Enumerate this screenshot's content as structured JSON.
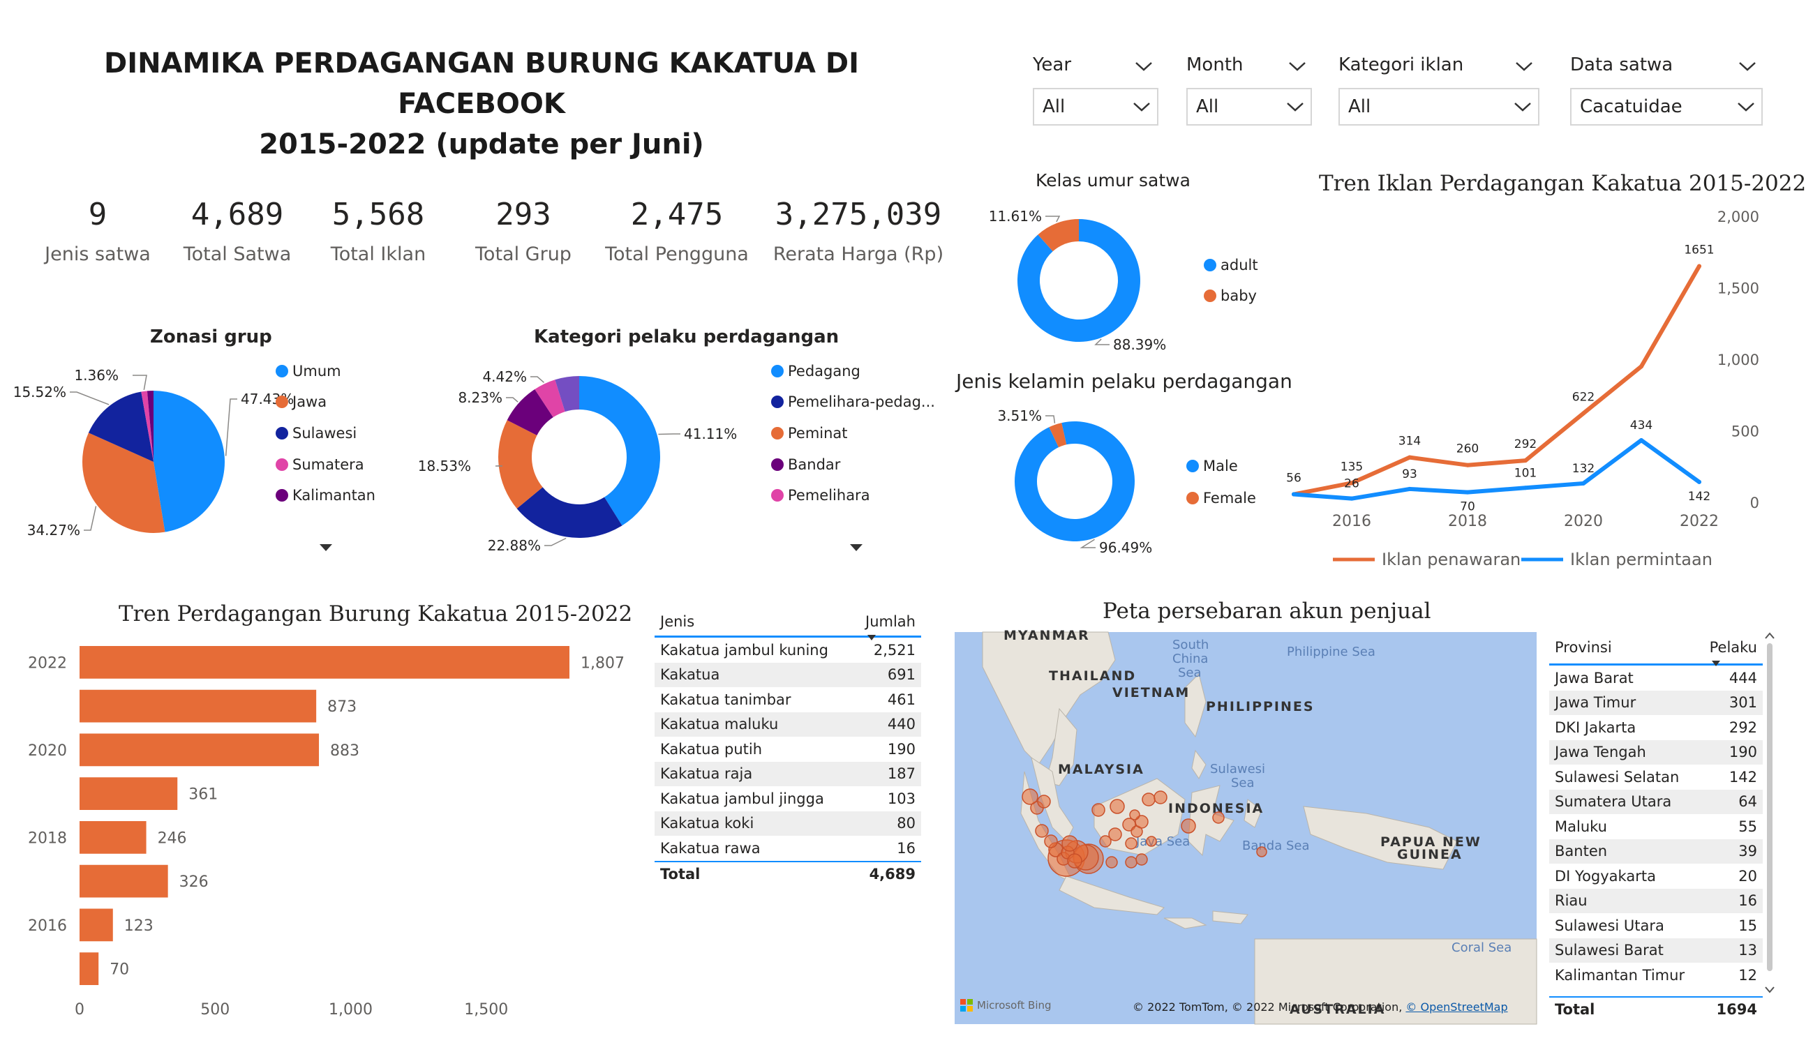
{
  "title": {
    "line1": "DINAMIKA PERDAGANGAN BURUNG KAKATUA DI FACEBOOK",
    "line2": "2015-2022 (update per Juni)"
  },
  "filters": [
    {
      "label": "Year",
      "value": "All"
    },
    {
      "label": "Month",
      "value": "All"
    },
    {
      "label": "Kategori iklan",
      "value": "All"
    },
    {
      "label": "Data satwa",
      "value": "Cacatuidae"
    }
  ],
  "kpis": [
    {
      "value": "9",
      "label": "Jenis satwa"
    },
    {
      "value": "4,689",
      "label": "Total Satwa"
    },
    {
      "value": "5,568",
      "label": "Total Iklan"
    },
    {
      "value": "293",
      "label": "Total Grup"
    },
    {
      "value": "2,475",
      "label": "Total Pengguna"
    },
    {
      "value": "3,275,039",
      "label": "Rerata Harga (Rp)"
    }
  ],
  "chart_data": [
    {
      "id": "zonasi",
      "type": "pie",
      "title": "Zonasi grup",
      "slices": [
        {
          "name": "Umum",
          "value": 47.43,
          "label": "47.43%",
          "color": "#118dff"
        },
        {
          "name": "Jawa",
          "value": 34.27,
          "label": "34.27%",
          "color": "#e66c37"
        },
        {
          "name": "Sulawesi",
          "value": 15.52,
          "label": "15.52%",
          "color": "#12239e"
        },
        {
          "name": "Sumatera",
          "value": 1.36,
          "label": "1.36%",
          "color": "#e044a7"
        },
        {
          "name": "Kalimantan",
          "value": 1.42,
          "label": "",
          "color": "#6b007b"
        }
      ]
    },
    {
      "id": "pelaku",
      "type": "pie",
      "title": "Kategori pelaku perdagangan",
      "slices": [
        {
          "name": "Pedagang",
          "value": 41.11,
          "label": "41.11%",
          "color": "#118dff"
        },
        {
          "name": "Pemelihara-pedag...",
          "value": 22.88,
          "label": "22.88%",
          "color": "#12239e"
        },
        {
          "name": "Peminat",
          "value": 18.53,
          "label": "18.53%",
          "color": "#e66c37"
        },
        {
          "name": "Bandar",
          "value": 8.23,
          "label": "8.23%",
          "color": "#6b007b"
        },
        {
          "name": "Pemelihara",
          "value": 4.42,
          "label": "4.42%",
          "color": "#e044a7"
        },
        {
          "name": "",
          "value": 4.83,
          "label": "",
          "color": "#744ec2"
        }
      ]
    },
    {
      "id": "umur",
      "type": "pie",
      "title": "Kelas umur satwa",
      "slices": [
        {
          "name": "adult",
          "value": 88.39,
          "label": "88.39%",
          "color": "#118dff"
        },
        {
          "name": "baby",
          "value": 11.61,
          "label": "11.61%",
          "color": "#e66c37"
        }
      ]
    },
    {
      "id": "kelamin",
      "type": "pie",
      "title": "Jenis kelamin pelaku perdagangan",
      "slices": [
        {
          "name": "Male",
          "value": 96.49,
          "label": "96.49%",
          "color": "#118dff"
        },
        {
          "name": "Female",
          "value": 3.51,
          "label": "3.51%",
          "color": "#e66c37"
        }
      ]
    },
    {
      "id": "tren_iklan",
      "type": "line",
      "title": "Tren Iklan Perdagangan Kakatua 2015-2022",
      "x": [
        2015,
        2016,
        2017,
        2018,
        2019,
        2020,
        2021,
        2022
      ],
      "x_ticks": [
        "2016",
        "2018",
        "2020",
        "2022"
      ],
      "y_ticks": [
        "0",
        "500",
        "1,000",
        "1,500",
        "2,000"
      ],
      "ylim": [
        0,
        2000
      ],
      "series": [
        {
          "name": "Iklan penawaran",
          "color": "#e66c37",
          "values": [
            56,
            135,
            314,
            260,
            292,
            622,
            950,
            1651
          ],
          "labels": [
            "56",
            "135",
            "314",
            "260",
            "292",
            "622",
            "",
            "1651"
          ]
        },
        {
          "name": "Iklan permintaan",
          "color": "#118dff",
          "values": [
            56,
            26,
            93,
            70,
            101,
            132,
            434,
            142
          ],
          "labels": [
            "",
            "26",
            "93",
            "70",
            "101",
            "132",
            "434",
            "142"
          ]
        }
      ]
    },
    {
      "id": "tren_perdagangan",
      "type": "bar",
      "orientation": "horizontal",
      "title": "Tren Perdagangan Burung Kakatua 2015-2022",
      "categories": [
        "2022",
        "2021",
        "2020",
        "2019",
        "2018",
        "2017",
        "2016",
        "2015"
      ],
      "category_labels": [
        "2022",
        "",
        "2020",
        "",
        "2018",
        "",
        "2016",
        ""
      ],
      "values": [
        1807,
        873,
        883,
        361,
        246,
        326,
        123,
        70
      ],
      "x_ticks": [
        "0",
        "500",
        "1,000",
        "1,500"
      ],
      "xlim": [
        0,
        1807
      ],
      "color": "#e66c37"
    }
  ],
  "jenis_table": {
    "headers": [
      "Jenis",
      "Jumlah"
    ],
    "rows": [
      [
        "Kakatua jambul kuning",
        "2,521"
      ],
      [
        "Kakatua",
        "691"
      ],
      [
        "Kakatua tanimbar",
        "461"
      ],
      [
        "Kakatua maluku",
        "440"
      ],
      [
        "Kakatua putih",
        "190"
      ],
      [
        "Kakatua raja",
        "187"
      ],
      [
        "Kakatua jambul jingga",
        "103"
      ],
      [
        "Kakatua koki",
        "80"
      ],
      [
        "Kakatua rawa",
        "16"
      ]
    ],
    "total": [
      "Total",
      "4,689"
    ]
  },
  "map": {
    "title": "Peta persebaran akun penjual",
    "labels": [
      "MYANMAR",
      "THAILAND",
      "VIETNAM",
      "PHILIPPINES",
      "MALAYSIA",
      "INDONESIA",
      "PAPUA NEW",
      "GUINEA",
      "AUSTRALIA"
    ],
    "seas": [
      "South",
      "China",
      "Sea",
      "Philippine Sea",
      "Sulawesi",
      "Sea",
      "Java Sea",
      "Banda Sea",
      "Coral Sea"
    ],
    "bing": "Microsoft Bing",
    "copyright": "© 2022 TomTom, © 2022 Microsoft Corporation,",
    "osm": "© OpenStreetMap"
  },
  "provinsi_table": {
    "headers": [
      "Provinsi",
      "Pelaku"
    ],
    "rows": [
      [
        "Jawa Barat",
        "444"
      ],
      [
        "Jawa Timur",
        "301"
      ],
      [
        "DKI Jakarta",
        "292"
      ],
      [
        "Jawa Tengah",
        "190"
      ],
      [
        "Sulawesi Selatan",
        "142"
      ],
      [
        "Sumatera Utara",
        "64"
      ],
      [
        "Maluku",
        "55"
      ],
      [
        "Banten",
        "39"
      ],
      [
        "DI Yogyakarta",
        "20"
      ],
      [
        "Riau",
        "16"
      ],
      [
        "Sulawesi Utara",
        "15"
      ],
      [
        "Sulawesi Barat",
        "13"
      ],
      [
        "Kalimantan Timur",
        "12"
      ]
    ],
    "total": [
      "Total",
      "1694"
    ]
  }
}
